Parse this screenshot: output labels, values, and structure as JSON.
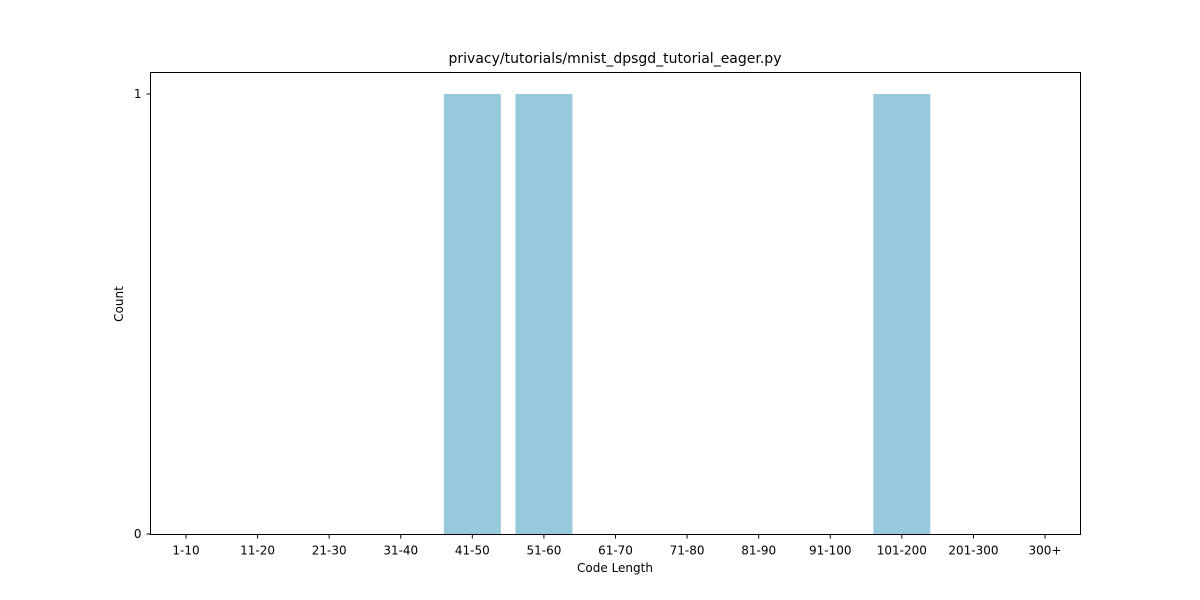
{
  "chart_data": {
    "type": "bar",
    "title": "privacy/tutorials/mnist_dpsgd_tutorial_eager.py",
    "xlabel": "Code Length",
    "ylabel": "Count",
    "categories": [
      "1-10",
      "11-20",
      "21-30",
      "31-40",
      "41-50",
      "51-60",
      "61-70",
      "71-80",
      "81-90",
      "91-100",
      "101-200",
      "201-300",
      "300+"
    ],
    "values": [
      0,
      0,
      0,
      0,
      1,
      1,
      0,
      0,
      0,
      0,
      1,
      0,
      0
    ],
    "ylim": [
      0,
      1
    ],
    "yticks": [
      0,
      1
    ],
    "bar_color": "#96c9dc",
    "grid": false,
    "legend": "none"
  }
}
